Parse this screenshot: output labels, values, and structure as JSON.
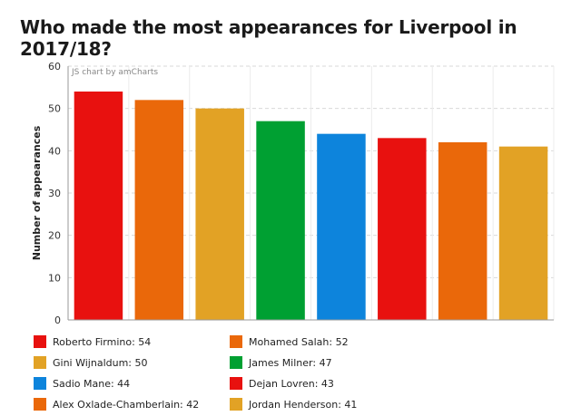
{
  "title": "Who made the most appearances for Liverpool in 2017/18?",
  "credit": "JS chart by amCharts",
  "chart_data": {
    "type": "bar",
    "title": "Who made the most appearances for Liverpool in 2017/18?",
    "xlabel": "",
    "ylabel": "Number of appearances",
    "ylim": [
      0,
      60
    ],
    "yticks": [
      0,
      10,
      20,
      30,
      40,
      50,
      60
    ],
    "grid": true,
    "legend_placement": "bottom",
    "categories": [
      "Roberto Firmino",
      "Mohamed Salah",
      "Gini Wijnaldum",
      "James Milner",
      "Sadio Mane",
      "Dejan Lovren",
      "Alex Oxlade-Chamberlain",
      "Jordan Henderson"
    ],
    "values": [
      54,
      52,
      50,
      47,
      44,
      43,
      42,
      41
    ],
    "colors": [
      "#e8110f",
      "#ea680a",
      "#e2a225",
      "#00a032",
      "#0d84dc",
      "#e8110f",
      "#ea680a",
      "#e2a225"
    ]
  },
  "legend": [
    {
      "label": "Roberto Firmino: 54",
      "color": "#e8110f"
    },
    {
      "label": "Mohamed Salah: 52",
      "color": "#ea680a"
    },
    {
      "label": "Gini Wijnaldum: 50",
      "color": "#e2a225"
    },
    {
      "label": "James Milner: 47",
      "color": "#00a032"
    },
    {
      "label": "Sadio Mane: 44",
      "color": "#0d84dc"
    },
    {
      "label": "Dejan Lovren: 43",
      "color": "#e8110f"
    },
    {
      "label": "Alex Oxlade-Chamberlain: 42",
      "color": "#ea680a"
    },
    {
      "label": "Jordan Henderson: 41",
      "color": "#e2a225"
    }
  ]
}
